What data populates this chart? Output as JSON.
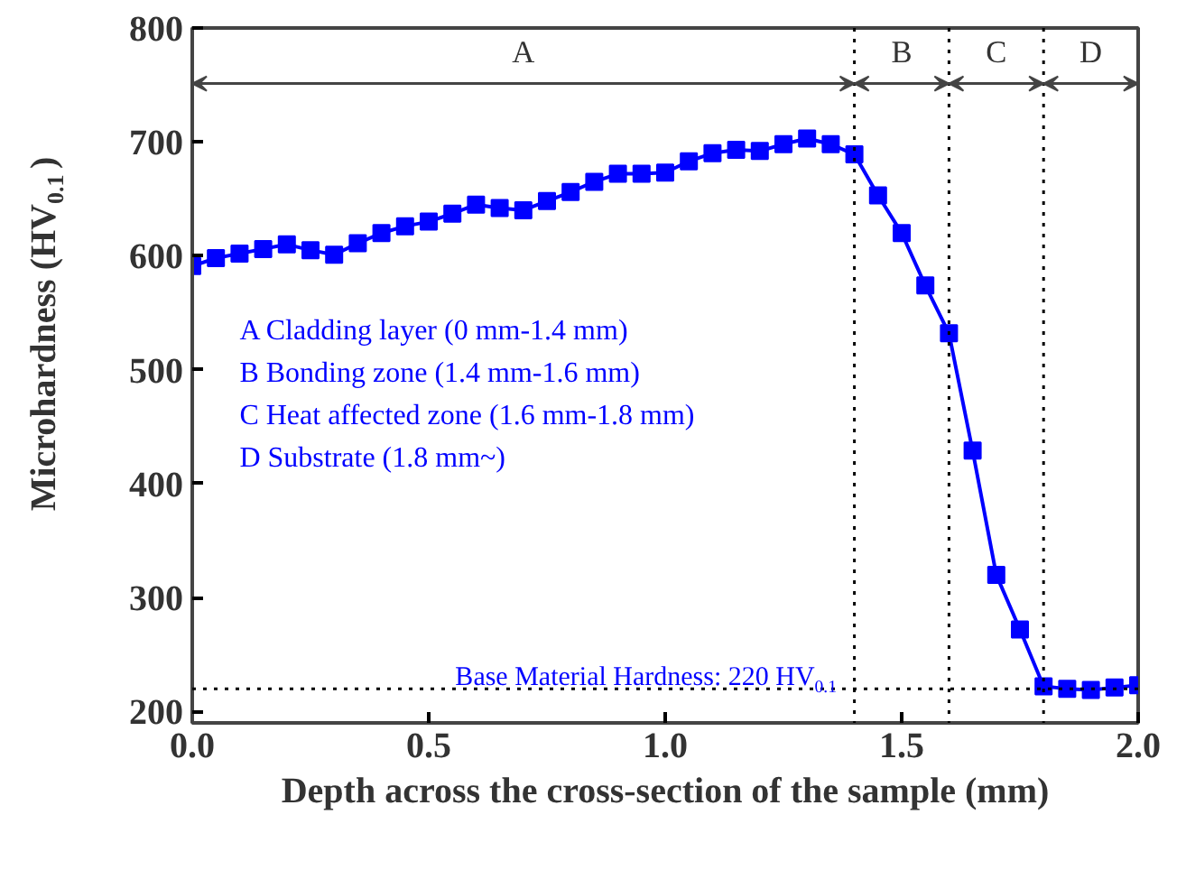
{
  "chart_data": {
    "type": "line",
    "xlabel": "Depth across the cross-section of the sample (mm)",
    "ylabel": "Microhardness (HV$_{0.1}$)",
    "x": [
      0,
      0.05,
      0.1,
      0.15,
      0.2,
      0.25,
      0.3,
      0.35,
      0.4,
      0.45,
      0.5,
      0.55,
      0.6,
      0.65,
      0.7,
      0.75,
      0.8,
      0.85,
      0.9,
      0.95,
      1.0,
      1.05,
      1.1,
      1.15,
      1.2,
      1.25,
      1.3,
      1.35,
      1.4,
      1.45,
      1.5,
      1.55,
      1.6,
      1.65,
      1.7,
      1.75,
      1.8,
      1.85,
      1.9,
      1.95,
      2.0
    ],
    "series": [
      {
        "color": "#0000ff",
        "values": [
          591,
          598,
          602,
          606,
          610,
          605,
          601,
          611,
          620,
          626,
          630,
          637,
          645,
          642,
          640,
          648,
          656,
          665,
          672,
          672,
          673,
          683,
          690,
          693,
          692,
          698,
          703,
          698,
          689,
          653,
          620,
          574,
          532,
          429,
          320,
          272,
          222,
          220,
          219,
          221,
          223
        ]
      }
    ],
    "marker": "square",
    "line_style": "solid",
    "xlim": [
      0,
      2.0
    ],
    "ylim": [
      190,
      800
    ],
    "xticks": [
      {
        "value": 0,
        "label": "0.0"
      },
      0.5,
      {
        "value": 1,
        "label": "1.0"
      },
      1.5,
      {
        "value": 2,
        "label": "2.0"
      }
    ],
    "yticks": [
      200,
      300,
      400,
      500,
      600,
      700,
      800
    ],
    "grid": false,
    "ref_lines": [
      {
        "axis": "x",
        "value": 1.4,
        "line_style": "dotted",
        "color": "#000000"
      },
      {
        "axis": "x",
        "value": 1.6,
        "line_style": "dotted",
        "color": "#000000"
      },
      {
        "axis": "x",
        "value": 1.8,
        "line_style": "dotted",
        "color": "#000000"
      },
      {
        "axis": "y",
        "value": 220,
        "line_style": "dotted",
        "color": "#000000",
        "label": "Base Material Hardness: 220 HV$_{0.1}$"
      }
    ],
    "annotations": [
      "A",
      "B",
      "C",
      "D",
      "A Cladding layer (0 mm-1.4 mm)",
      "B Bonding zone (1.4 mm-1.6 mm)",
      "C Heat affected zone (1.6 mm-1.8 mm)",
      "D Substrate (1.8 mm~)"
    ]
  }
}
